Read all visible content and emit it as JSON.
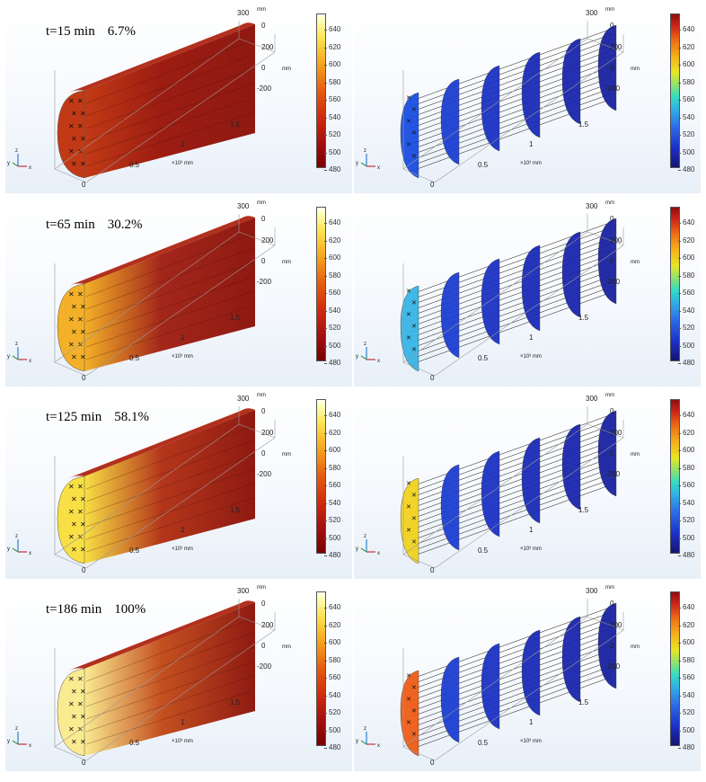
{
  "panels": [
    {
      "time_label": "t=15 min",
      "percent_label": "6.7%",
      "left_fill": "#9c1c12",
      "left_end_fill": "#c23a15",
      "right_first_fill": "#1a4ee0"
    },
    {
      "time_label": "t=65 min",
      "percent_label": "30.2%",
      "left_fill": "#a3261a",
      "left_end_fill": "#f3b028",
      "right_first_fill": "#38b5e6"
    },
    {
      "time_label": "t=125 min",
      "percent_label": "58.1%",
      "left_fill": "#b4361a",
      "left_end_fill": "#f8df44",
      "right_first_fill": "#f2d31f"
    },
    {
      "time_label": "t=186 min",
      "percent_label": "100%",
      "left_fill": "#c45020",
      "left_end_fill": "#faeb90",
      "right_first_fill": "#ef5d18"
    }
  ],
  "colorbar": {
    "ticks": [
      "640",
      "620",
      "600",
      "580",
      "560",
      "540",
      "520",
      "500",
      "480"
    ]
  },
  "axes": {
    "mm": "mm",
    "v300": "300",
    "v200": "200",
    "v0": "0",
    "vm200": "-200",
    "x0": "0",
    "x05": "0.5",
    "x1": "1",
    "x15": "1.5",
    "x_unit": "×10³ mm"
  },
  "triad": {
    "x": "x",
    "y": "y",
    "z": "z"
  }
}
